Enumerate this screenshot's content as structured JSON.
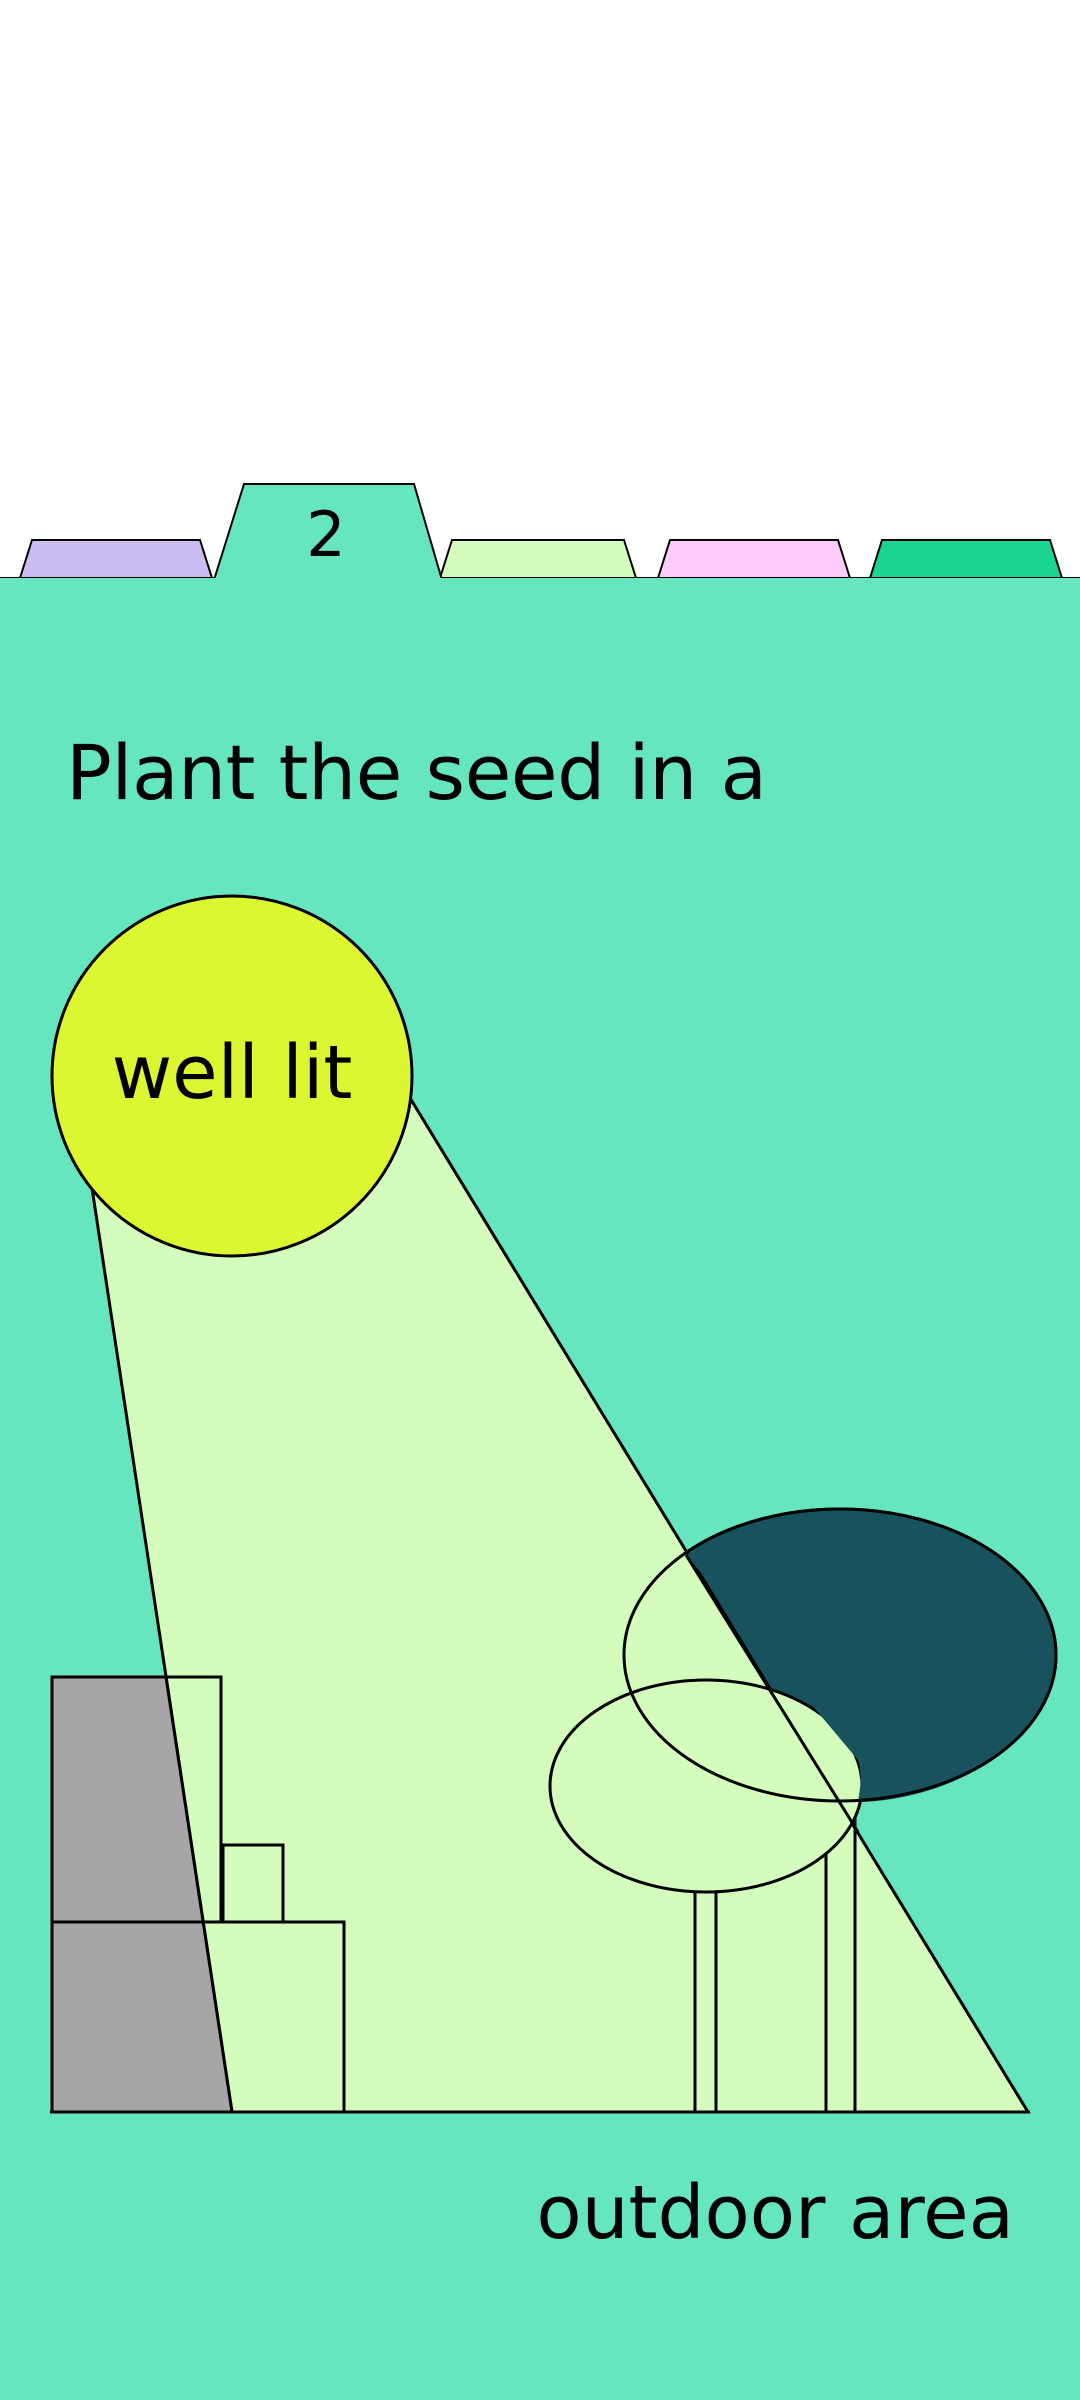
{
  "colors": {
    "card_bg": "#66e6bf",
    "tab_1": "#cbbdf1",
    "tab_2": "#66e6bf",
    "tab_3": "#d4fdbd",
    "tab_4": "#fecbfa",
    "tab_5": "#1ad48f",
    "sun": "#dcf631",
    "light_beam": "#d4fdbd",
    "building_shadow": "#a6a6a6",
    "tree_dark": "#17525d",
    "outline": "#000000"
  },
  "tabs": {
    "active_number": "2"
  },
  "step": {
    "headline": "Plant the seed in a",
    "sun_label": "well lit",
    "footer_label": "outdoor area"
  },
  "icons": {
    "sun": "sun-circle",
    "buildings": "building-blocks",
    "trees": "tree-shapes"
  }
}
